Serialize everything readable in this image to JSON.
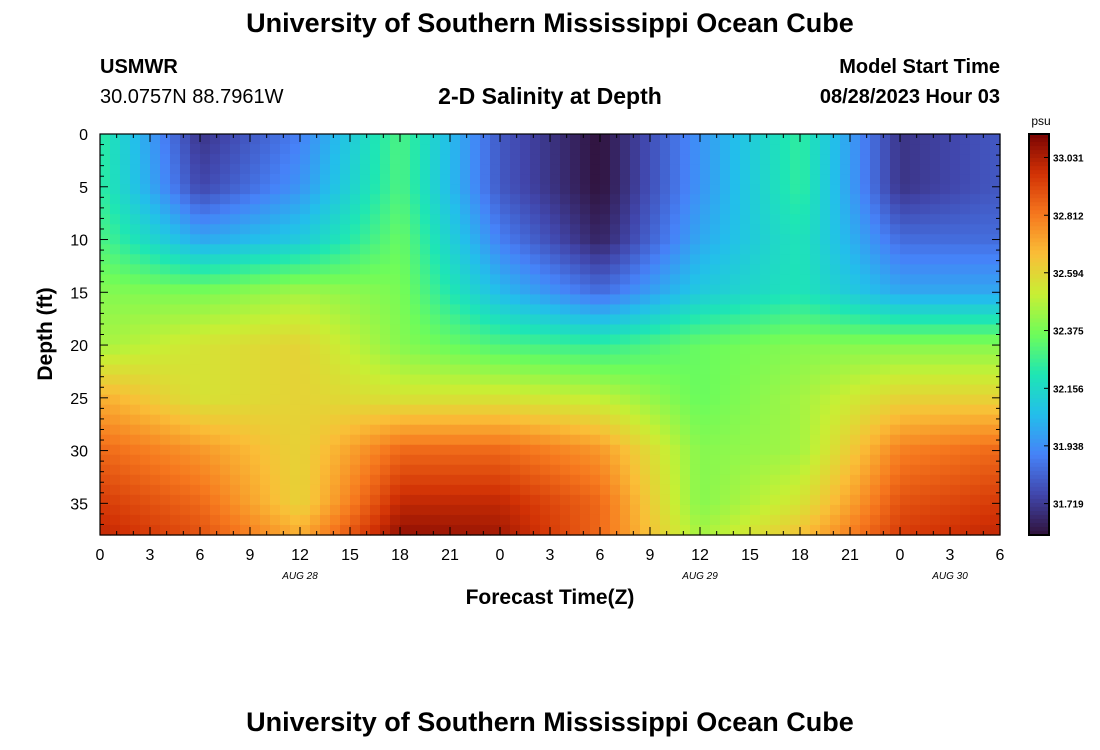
{
  "header": {
    "title": "University of Southern Mississippi Ocean Cube",
    "station_id": "USMWR",
    "station_coords": "30.0757N  88.7961W",
    "plot_title": "2-D Salinity at Depth",
    "model_start_label": "Model Start Time",
    "model_start_time": "08/28/2023 Hour 03"
  },
  "footer": {
    "title": "University of Southern Mississippi Ocean Cube"
  },
  "chart_data": {
    "type": "heatmap",
    "title": "2-D Salinity at Depth",
    "xlabel": "Forecast Time(Z)",
    "ylabel": "Depth (ft)",
    "x_tick_labels": [
      "0",
      "3",
      "6",
      "9",
      "12",
      "15",
      "18",
      "21",
      "0",
      "3",
      "6",
      "9",
      "12",
      "15",
      "18",
      "21",
      "0",
      "3",
      "6"
    ],
    "x_tick_hours": [
      0,
      3,
      6,
      9,
      12,
      15,
      18,
      21,
      24,
      27,
      30,
      33,
      36,
      39,
      42,
      45,
      48,
      51,
      54
    ],
    "xlim_hours": [
      0,
      54
    ],
    "date_labels": [
      {
        "text": "AUG 28",
        "hour": 12
      },
      {
        "text": "AUG 29",
        "hour": 36
      },
      {
        "text": "AUG 30",
        "hour": 51
      }
    ],
    "y_ticks": [
      0,
      5,
      10,
      15,
      20,
      25,
      30,
      35
    ],
    "ylim": [
      0,
      38
    ],
    "y_inverted": true,
    "colorbar": {
      "unit": "psu",
      "range": [
        31.6,
        33.12
      ],
      "tick_values": [
        33.031,
        32.812,
        32.594,
        32.375,
        32.156,
        31.938,
        31.719
      ],
      "tick_labels": [
        "33.031",
        "32.812",
        "32.594",
        "32.375",
        "32.156",
        "31.938",
        "31.719"
      ],
      "colormap": "turbo"
    },
    "grid": {
      "time_hours": [
        0,
        6,
        12,
        18,
        24,
        30,
        36,
        42,
        48,
        54
      ],
      "depth_ft": [
        0,
        5,
        10,
        15,
        20,
        25,
        30,
        35,
        38
      ],
      "salinity_psu": [
        [
          32.25,
          31.7,
          31.9,
          32.3,
          31.8,
          31.6,
          31.95,
          32.25,
          31.7,
          31.8
        ],
        [
          32.25,
          31.75,
          31.95,
          32.3,
          31.8,
          31.6,
          31.95,
          32.25,
          31.7,
          31.8
        ],
        [
          32.3,
          32.0,
          32.1,
          32.35,
          31.9,
          31.65,
          32.0,
          32.2,
          31.85,
          31.85
        ],
        [
          32.4,
          32.38,
          32.45,
          32.38,
          32.05,
          31.85,
          32.1,
          32.2,
          32.0,
          32.0
        ],
        [
          32.45,
          32.55,
          32.6,
          32.4,
          32.3,
          32.25,
          32.35,
          32.4,
          32.4,
          32.4
        ],
        [
          32.7,
          32.55,
          32.6,
          32.55,
          32.55,
          32.5,
          32.35,
          32.45,
          32.6,
          32.6
        ],
        [
          32.85,
          32.75,
          32.6,
          32.85,
          32.85,
          32.75,
          32.4,
          32.45,
          32.8,
          32.85
        ],
        [
          32.95,
          32.85,
          32.6,
          33.0,
          33.0,
          32.85,
          32.4,
          32.55,
          32.9,
          32.95
        ],
        [
          33.0,
          32.9,
          32.7,
          33.08,
          33.05,
          32.85,
          32.45,
          32.65,
          32.95,
          33.0
        ]
      ]
    }
  }
}
